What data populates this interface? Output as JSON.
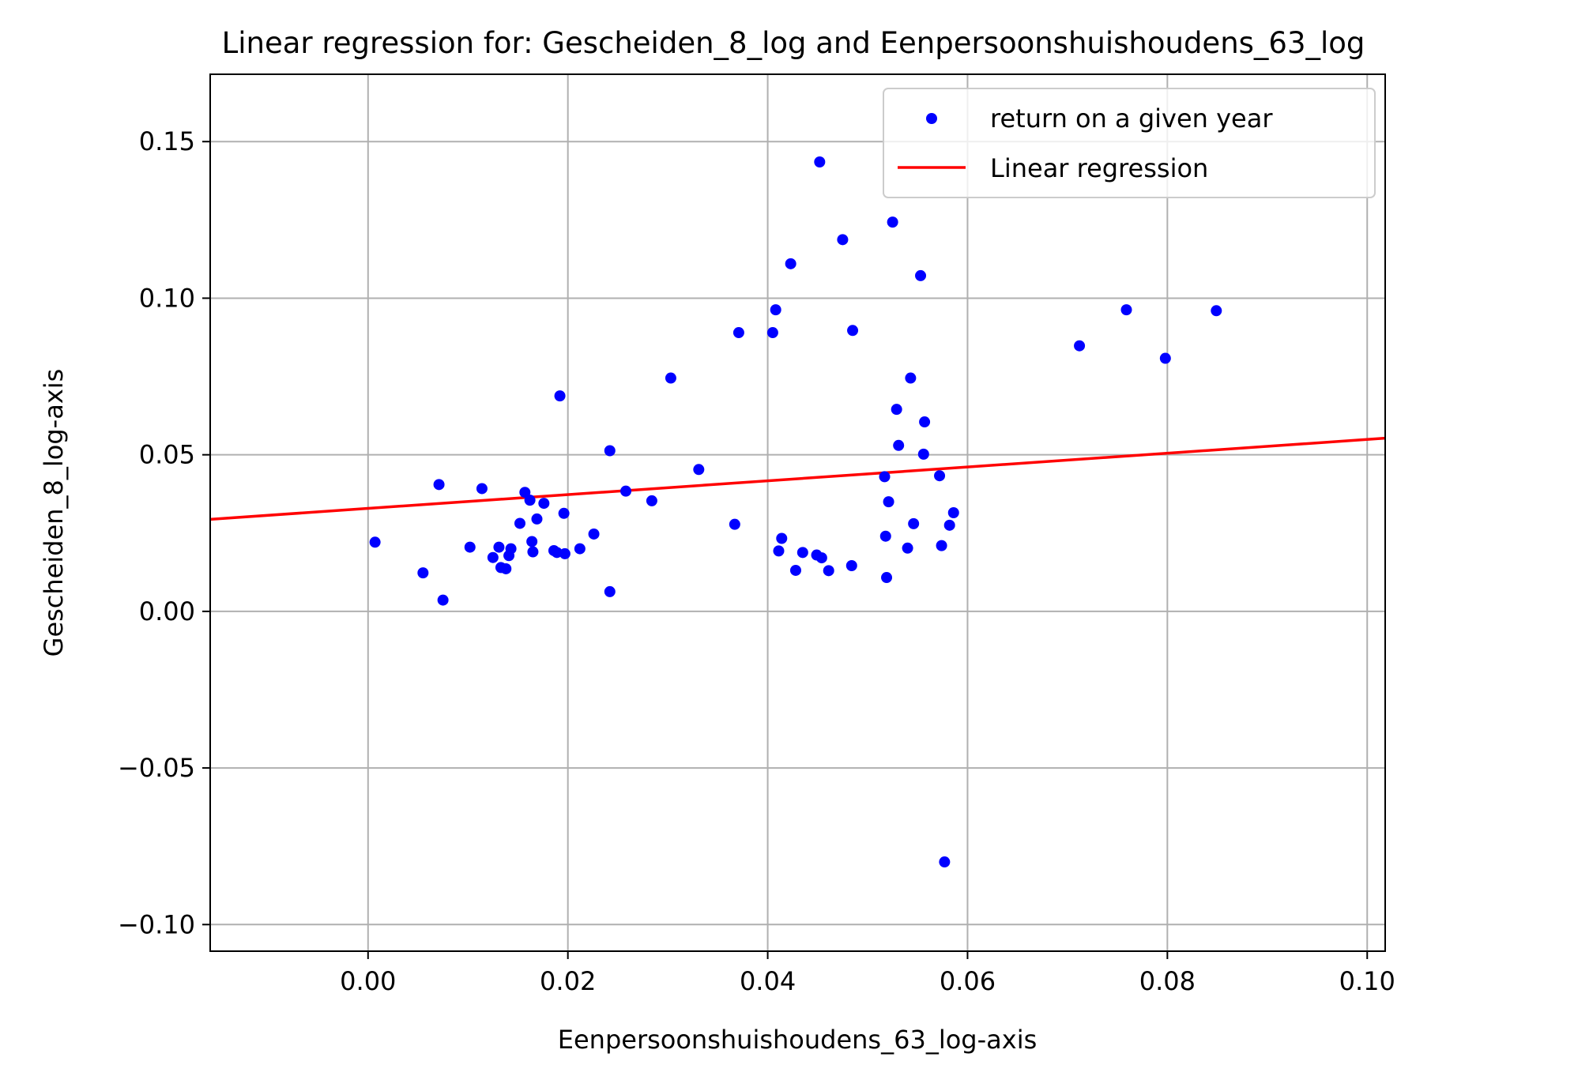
{
  "chart_data": {
    "type": "scatter",
    "title": "Linear regression for: Gescheiden_8_log and Eenpersoonshuishoudens_63_log",
    "xlabel": "Eenpersoonshuishoudens_63_log-axis",
    "ylabel": "Gescheiden_8_log-axis",
    "xlim": [
      -0.0158,
      0.1018
    ],
    "ylim": [
      -0.1085,
      0.1715
    ],
    "x_ticks": [
      {
        "value": 0.0,
        "label": "0.00"
      },
      {
        "value": 0.02,
        "label": "0.02"
      },
      {
        "value": 0.04,
        "label": "0.04"
      },
      {
        "value": 0.06,
        "label": "0.06"
      },
      {
        "value": 0.08,
        "label": "0.08"
      },
      {
        "value": 0.1,
        "label": "0.10"
      }
    ],
    "y_ticks": [
      {
        "value": -0.1,
        "label": "−0.10"
      },
      {
        "value": -0.05,
        "label": "−0.05"
      },
      {
        "value": 0.0,
        "label": "0.00"
      },
      {
        "value": 0.05,
        "label": "0.05"
      },
      {
        "value": 0.1,
        "label": "0.10"
      },
      {
        "value": 0.15,
        "label": "0.15"
      }
    ],
    "grid": true,
    "legend_position": "top-right",
    "series": [
      {
        "name": "return on a given year",
        "kind": "scatter",
        "color": "#0000ff",
        "points": [
          [
            0.0007,
            0.0221
          ],
          [
            0.0055,
            0.0123
          ],
          [
            0.0071,
            0.0405
          ],
          [
            0.0075,
            0.0036
          ],
          [
            0.0102,
            0.0205
          ],
          [
            0.0114,
            0.0392
          ],
          [
            0.0125,
            0.0172
          ],
          [
            0.0131,
            0.0205
          ],
          [
            0.0133,
            0.014
          ],
          [
            0.0138,
            0.0136
          ],
          [
            0.0141,
            0.0178
          ],
          [
            0.0143,
            0.02
          ],
          [
            0.0152,
            0.0281
          ],
          [
            0.0157,
            0.038
          ],
          [
            0.0162,
            0.0355
          ],
          [
            0.0164,
            0.0223
          ],
          [
            0.0165,
            0.019
          ],
          [
            0.0169,
            0.0295
          ],
          [
            0.0176,
            0.0345
          ],
          [
            0.0186,
            0.0194
          ],
          [
            0.0189,
            0.0188
          ],
          [
            0.0192,
            0.0688
          ],
          [
            0.0196,
            0.0313
          ],
          [
            0.0197,
            0.0184
          ],
          [
            0.0212,
            0.02
          ],
          [
            0.0226,
            0.0247
          ],
          [
            0.0242,
            0.0513
          ],
          [
            0.0242,
            0.0063
          ],
          [
            0.0258,
            0.0384
          ],
          [
            0.0284,
            0.0353
          ],
          [
            0.0303,
            0.0745
          ],
          [
            0.0331,
            0.0453
          ],
          [
            0.0367,
            0.0278
          ],
          [
            0.0371,
            0.089
          ],
          [
            0.0405,
            0.089
          ],
          [
            0.0408,
            0.0963
          ],
          [
            0.0411,
            0.0193
          ],
          [
            0.0414,
            0.0233
          ],
          [
            0.0423,
            0.111
          ],
          [
            0.0428,
            0.0131
          ],
          [
            0.0435,
            0.0188
          ],
          [
            0.0449,
            0.018
          ],
          [
            0.0452,
            0.1435
          ],
          [
            0.0454,
            0.0171
          ],
          [
            0.0461,
            0.013
          ],
          [
            0.0475,
            0.1187
          ],
          [
            0.0484,
            0.0146
          ],
          [
            0.0485,
            0.0897
          ],
          [
            0.0517,
            0.043
          ],
          [
            0.0518,
            0.024
          ],
          [
            0.0519,
            0.0108
          ],
          [
            0.0521,
            0.035
          ],
          [
            0.0525,
            0.1243
          ],
          [
            0.0529,
            0.0645
          ],
          [
            0.0531,
            0.053
          ],
          [
            0.054,
            0.0202
          ],
          [
            0.0543,
            0.0745
          ],
          [
            0.0546,
            0.028
          ],
          [
            0.0553,
            0.1072
          ],
          [
            0.0556,
            0.0502
          ],
          [
            0.0557,
            0.0605
          ],
          [
            0.0572,
            0.0433
          ],
          [
            0.0574,
            0.021
          ],
          [
            0.0577,
            -0.08
          ],
          [
            0.0582,
            0.0275
          ],
          [
            0.0586,
            0.0315
          ],
          [
            0.0712,
            0.0848
          ],
          [
            0.0759,
            0.0963
          ],
          [
            0.0798,
            0.0808
          ],
          [
            0.0849,
            0.096
          ]
        ]
      },
      {
        "name": "Linear regression",
        "kind": "line",
        "color": "#ff0000",
        "points": [
          [
            -0.0158,
            0.0294
          ],
          [
            0.1018,
            0.0553
          ]
        ]
      }
    ]
  }
}
